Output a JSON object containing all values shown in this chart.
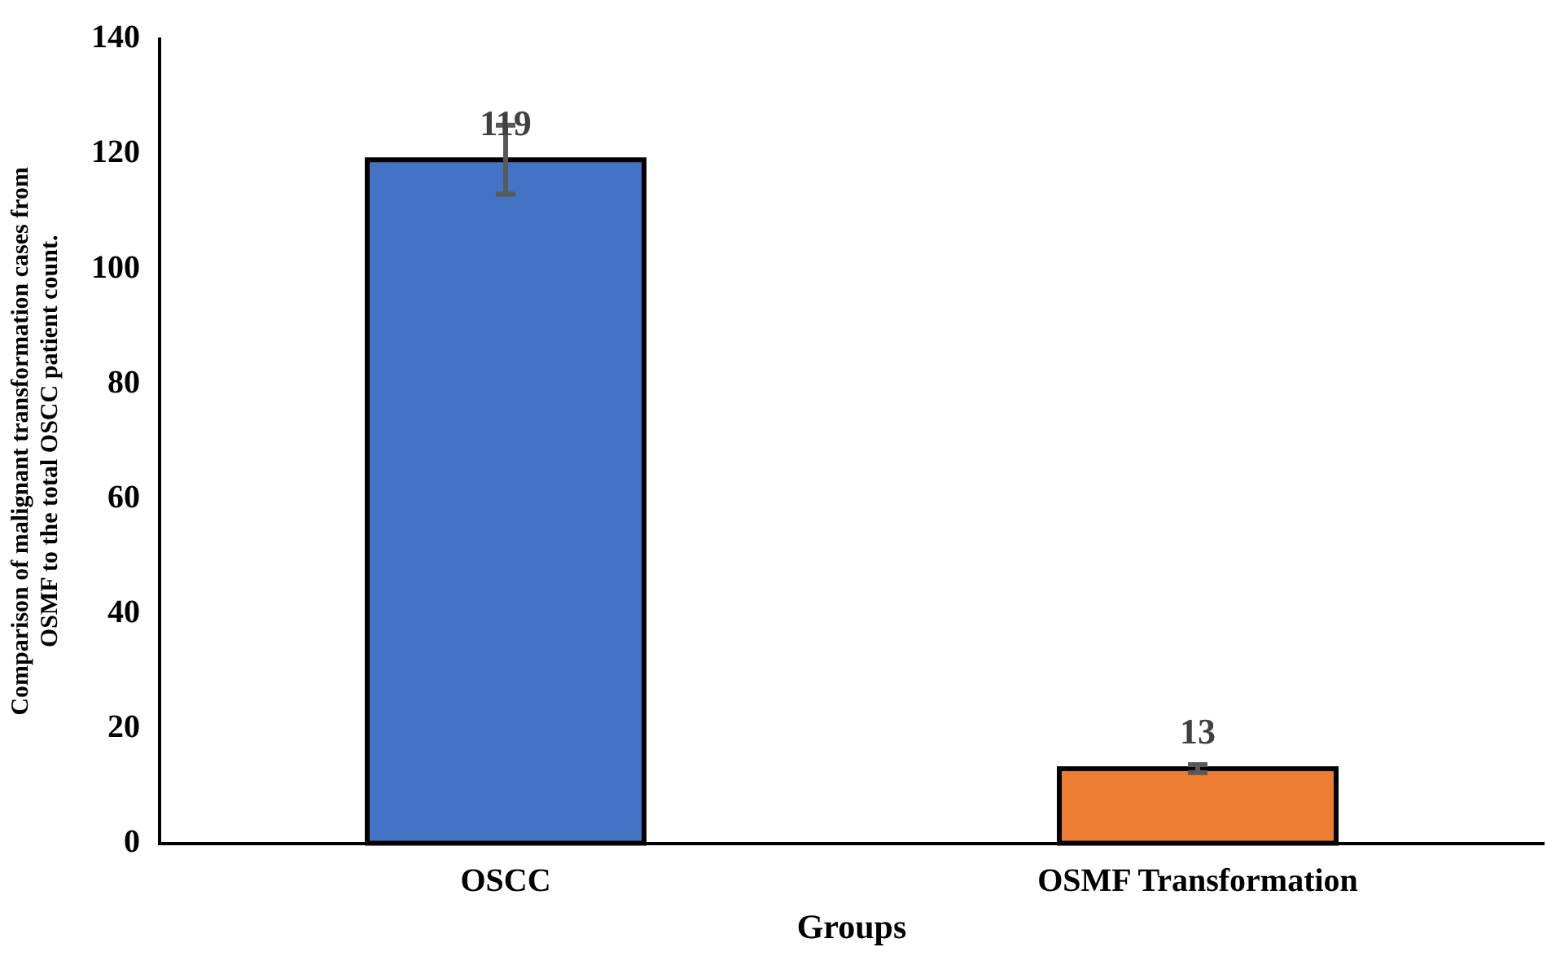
{
  "chart_data": {
    "type": "bar",
    "xlabel": "Groups",
    "ylabel": "Comparison of malignant transformation cases from OSMF to the total OSCC patient count.",
    "categories": [
      "OSCC",
      "OSMF Transformation"
    ],
    "values": [
      119,
      13
    ],
    "colors": [
      "#4472c4",
      "#ed7d31"
    ],
    "errors": [
      6,
      0.7
    ],
    "data_labels": true,
    "ylim": [
      0,
      140
    ],
    "yticks": [
      0,
      20,
      40,
      60,
      80,
      100,
      120,
      140
    ],
    "grid": false,
    "legend": false
  }
}
